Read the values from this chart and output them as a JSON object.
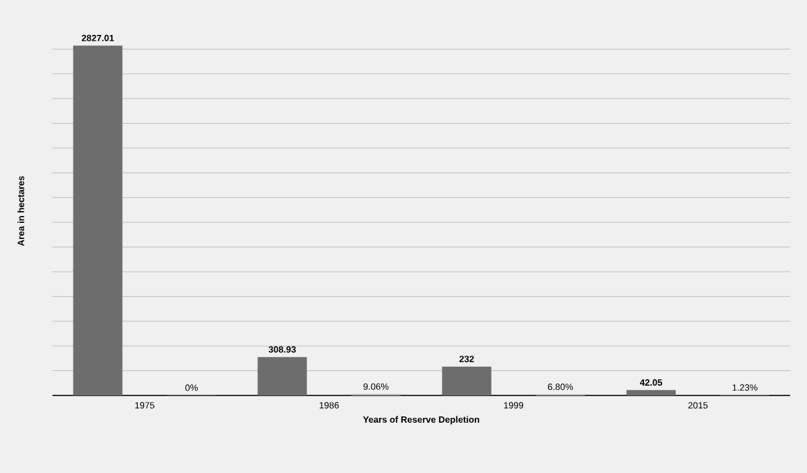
{
  "chart_data": {
    "type": "bar",
    "xlabel": "Years of Reserve Depletion",
    "ylabel": "Area in hectares",
    "categories": [
      "1975",
      "1986",
      "1999",
      "2015"
    ],
    "series": [
      {
        "color": "#6d6d6d",
        "values": [
          2827.01,
          308.93,
          232,
          42.05
        ],
        "value_labels": [
          "2827.01",
          "308.93",
          "232",
          "42.05"
        ]
      },
      {
        "color": "#a5a5a5",
        "values": [
          0,
          9.06,
          6.8,
          1.23
        ],
        "value_labels": [
          "0%",
          "9.06%",
          "6.80%",
          "1.23%"
        ]
      }
    ],
    "grid": "y",
    "tick_labels": "x"
  }
}
